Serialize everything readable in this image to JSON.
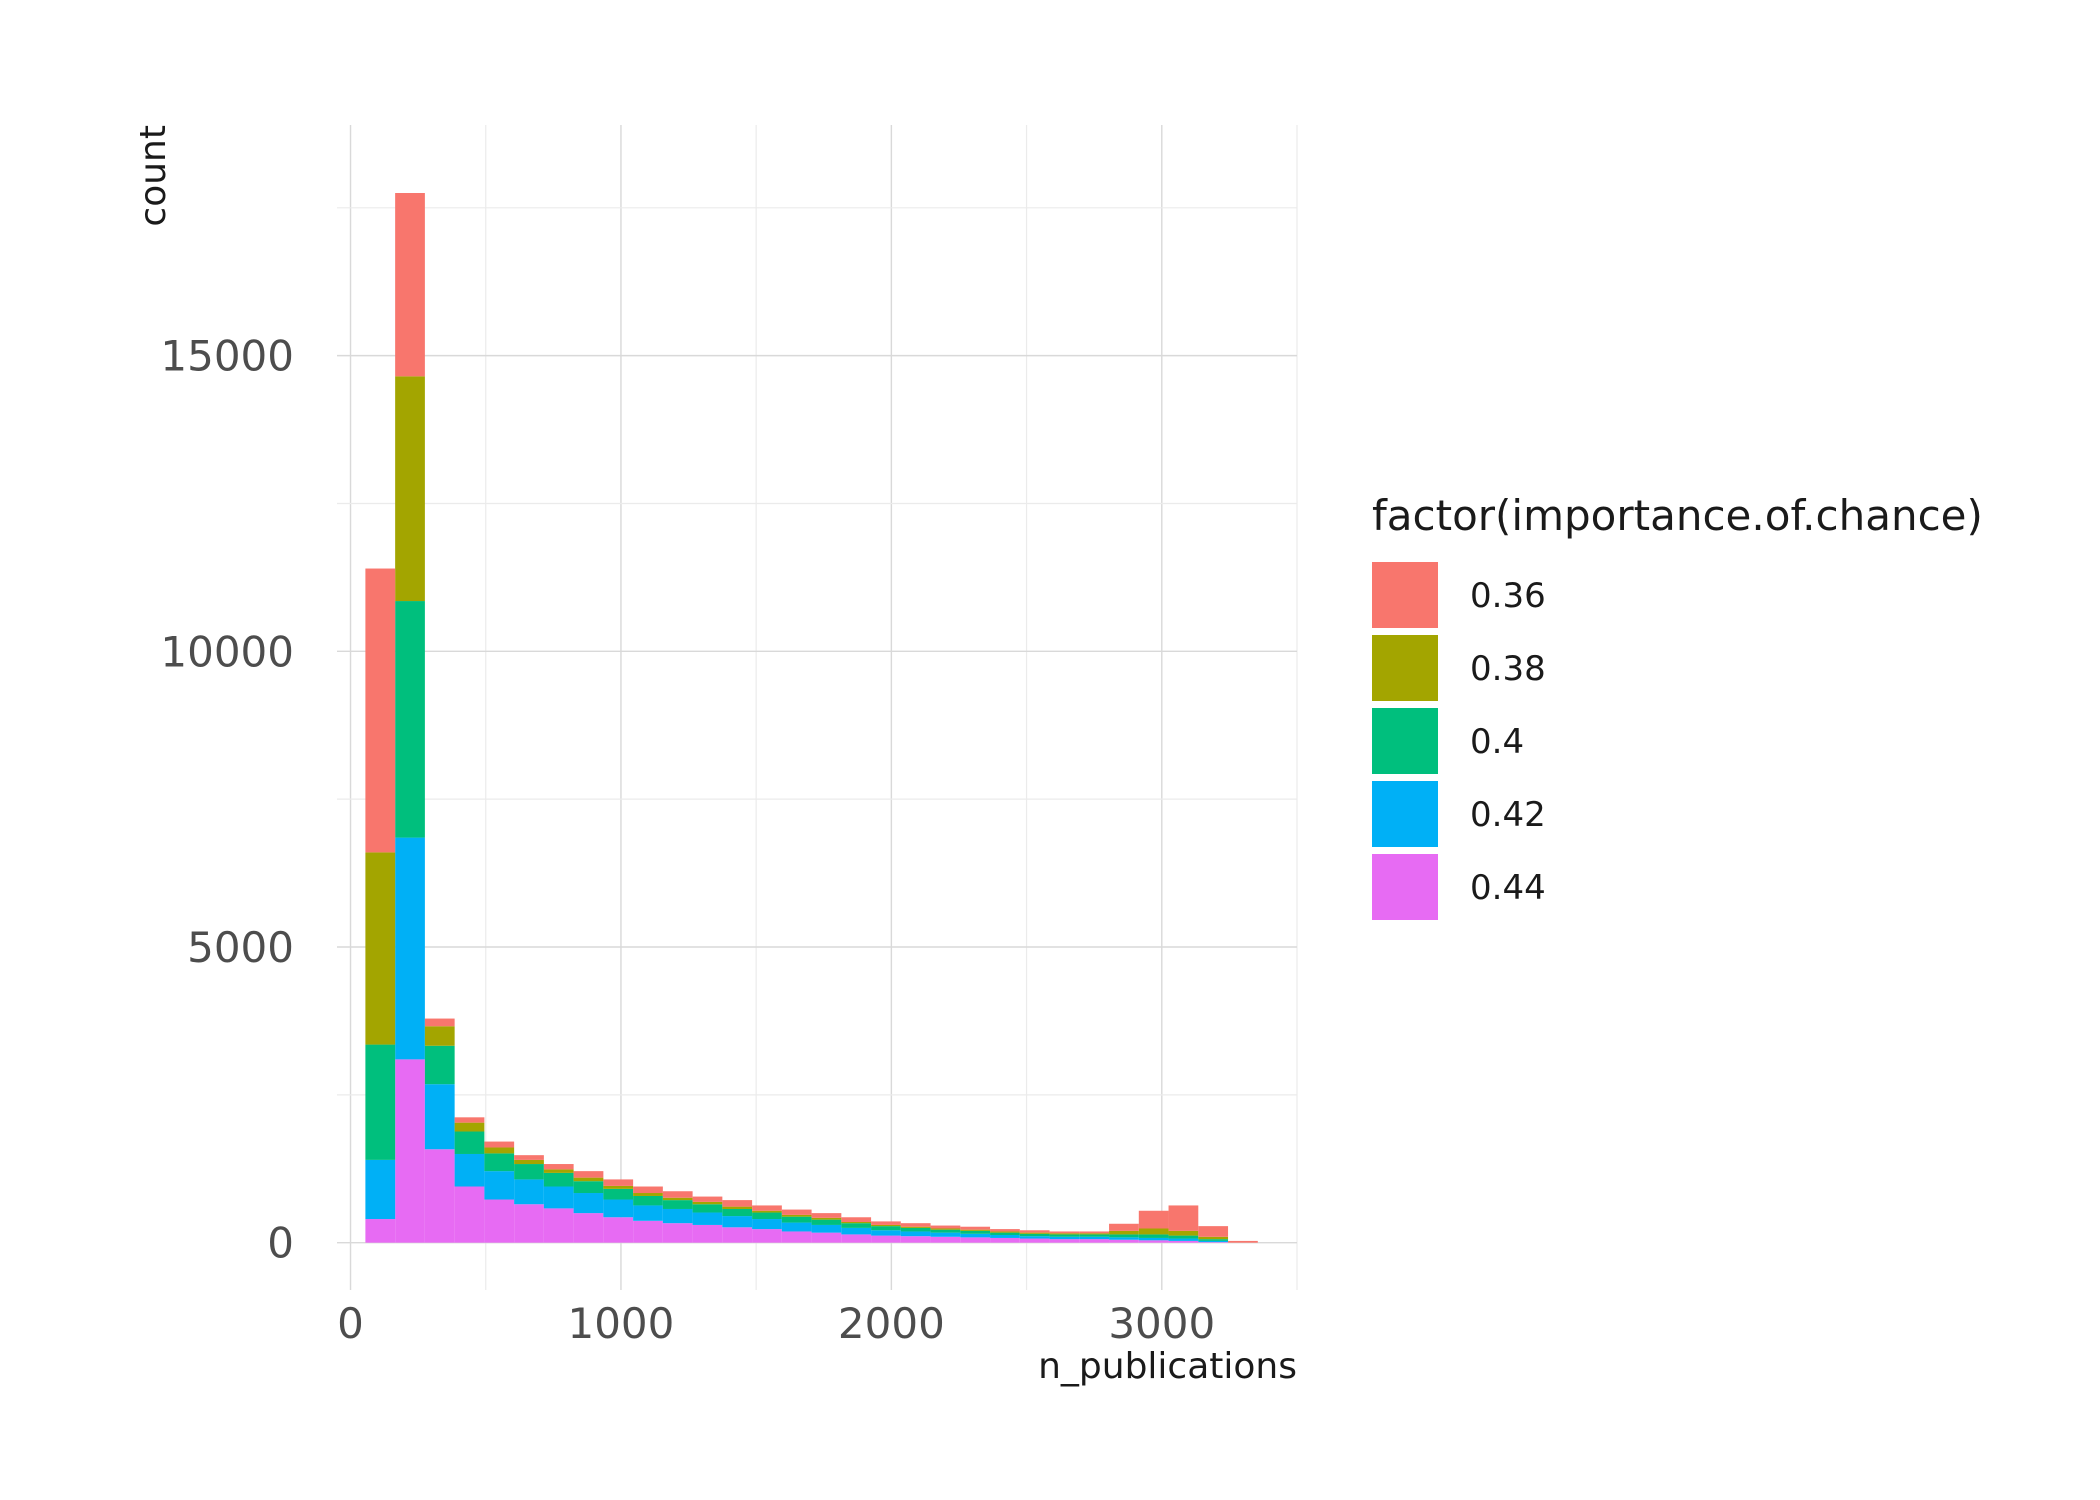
{
  "chart_data": {
    "type": "bar",
    "stacked": true,
    "title": "",
    "xlabel": "n_publications",
    "ylabel": "count",
    "xlim": [
      -50,
      3500
    ],
    "ylim": [
      -800,
      18900
    ],
    "x_ticks": [
      0,
      1000,
      2000,
      3000
    ],
    "y_ticks": [
      0,
      5000,
      10000,
      15000
    ],
    "bin_width": 110,
    "bin_centers": [
      110,
      220,
      330,
      440,
      550,
      660,
      770,
      880,
      990,
      1100,
      1210,
      1320,
      1430,
      1540,
      1650,
      1760,
      1870,
      1980,
      2090,
      2200,
      2310,
      2420,
      2530,
      2640,
      2750,
      2860,
      2970,
      3080,
      3190,
      3300
    ],
    "legend_title": "factor(importance.of.chance)",
    "legend_position": "right",
    "grid": true,
    "series": [
      {
        "name": "0.44",
        "color": "#E76BF3",
        "values": [
          400,
          3100,
          1580,
          950,
          730,
          650,
          580,
          500,
          430,
          370,
          330,
          300,
          260,
          230,
          190,
          170,
          140,
          120,
          110,
          100,
          90,
          80,
          70,
          60,
          60,
          50,
          40,
          30,
          10,
          0
        ]
      },
      {
        "name": "0.42",
        "color": "#00B0F6",
        "values": [
          1000,
          3750,
          1100,
          550,
          480,
          420,
          370,
          340,
          300,
          260,
          240,
          210,
          190,
          170,
          150,
          130,
          110,
          90,
          80,
          70,
          60,
          50,
          40,
          40,
          40,
          40,
          40,
          40,
          20,
          0
        ]
      },
      {
        "name": "0.4",
        "color": "#00BF7D",
        "values": [
          1950,
          4000,
          650,
          380,
          300,
          260,
          230,
          200,
          180,
          160,
          150,
          140,
          120,
          110,
          100,
          90,
          80,
          70,
          60,
          50,
          50,
          40,
          40,
          40,
          40,
          50,
          60,
          50,
          30,
          0
        ]
      },
      {
        "name": "0.38",
        "color": "#A3A500",
        "values": [
          3250,
          3800,
          330,
          150,
          100,
          70,
          60,
          60,
          50,
          50,
          40,
          40,
          40,
          30,
          30,
          30,
          20,
          20,
          20,
          20,
          20,
          20,
          20,
          20,
          20,
          60,
          100,
          80,
          40,
          0
        ]
      },
      {
        "name": "0.36",
        "color": "#F8766D",
        "values": [
          4800,
          3100,
          130,
          90,
          100,
          80,
          90,
          110,
          110,
          110,
          110,
          90,
          110,
          90,
          90,
          80,
          80,
          60,
          60,
          50,
          50,
          40,
          40,
          30,
          30,
          120,
          300,
          430,
          180,
          30
        ]
      }
    ]
  }
}
